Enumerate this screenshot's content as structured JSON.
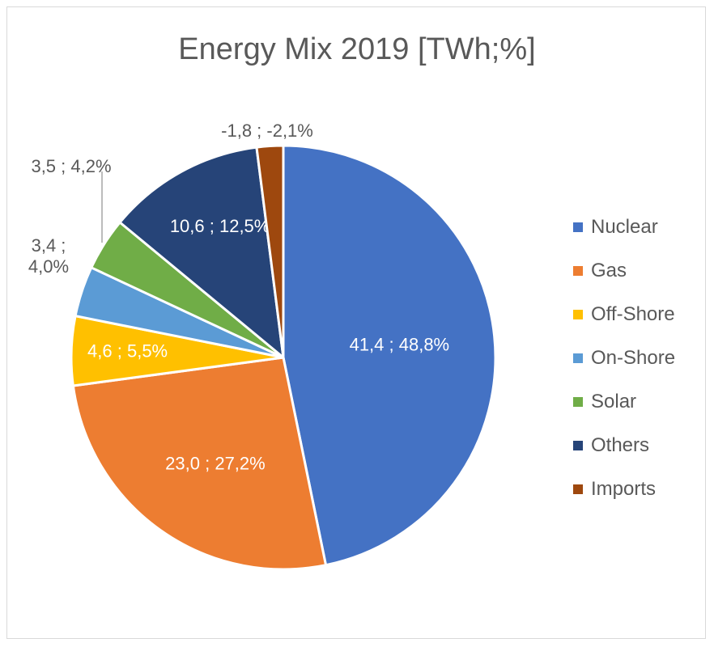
{
  "chart_data": {
    "type": "pie",
    "title": "Energy Mix 2019 [TWh;%]",
    "series": [
      {
        "name": "Nuclear",
        "value": 41.4,
        "percent": 48.8,
        "label": "41,4 ; 48,8%",
        "color": "#4472C4"
      },
      {
        "name": "Gas",
        "value": 23.0,
        "percent": 27.2,
        "label": "23,0 ; 27,2%",
        "color": "#ED7D31"
      },
      {
        "name": "Off-Shore",
        "value": 4.6,
        "percent": 5.5,
        "label": "4,6 ; 5,5%",
        "color": "#FFC000"
      },
      {
        "name": "On-Shore",
        "value": 3.4,
        "percent": 4.0,
        "label_lines": [
          "3,4 ;",
          "4,0%"
        ],
        "color": "#5B9BD5"
      },
      {
        "name": "Solar",
        "value": 3.5,
        "percent": 4.2,
        "label": "3,5 ; 4,2%",
        "color": "#70AD47"
      },
      {
        "name": "Others",
        "value": 10.6,
        "percent": 12.5,
        "label": "10,6 ; 12,5%",
        "color": "#264478"
      },
      {
        "name": "Imports",
        "value": -1.8,
        "percent": -2.1,
        "label": "-1,8 ; -2,1%",
        "color": "#9E480E"
      }
    ],
    "legend_position": "right"
  }
}
